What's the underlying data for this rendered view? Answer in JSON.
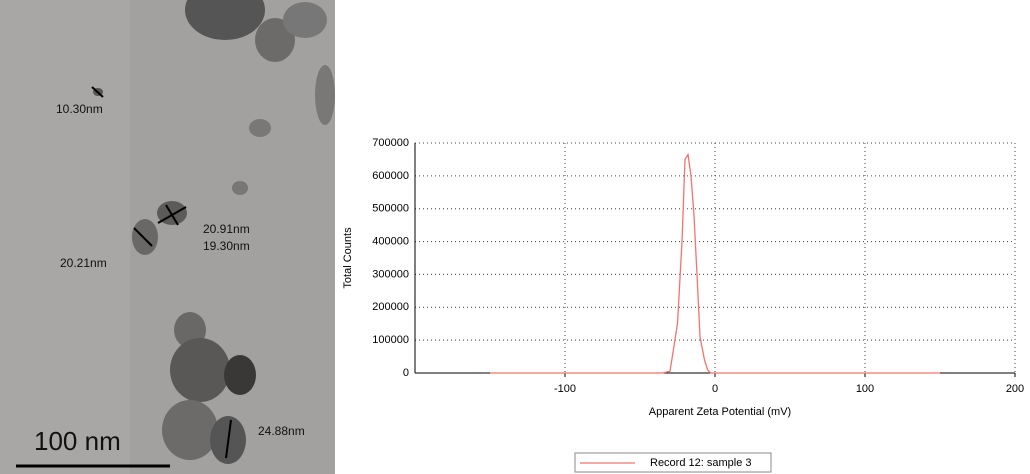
{
  "micrograph": {
    "labels": [
      "10.30nm",
      "20.21nm",
      "20.91nm",
      "19.30nm",
      "24.88nm"
    ],
    "scale_bar": "100 nm"
  },
  "chart_data": {
    "type": "line",
    "x_label": "Apparent Zeta Potential (mV)",
    "y_label": "Total Counts",
    "x": [
      -150,
      -35,
      -30,
      -25,
      -22,
      -20,
      -18,
      -16,
      -14,
      -12,
      -10,
      -7,
      -5,
      -3,
      0,
      150
    ],
    "series": [
      {
        "name": "Record 12: sample 3",
        "color": "#f4736b",
        "values": [
          0,
          0,
          5000,
          150000,
          400000,
          650000,
          665000,
          600000,
          480000,
          300000,
          110000,
          40000,
          10000,
          0,
          0,
          0
        ]
      }
    ],
    "xlim": [
      -200,
      200
    ],
    "xticks": [
      -100,
      0,
      100,
      200
    ],
    "ylim": [
      0,
      700000
    ],
    "yticks": [
      0,
      100000,
      200000,
      300000,
      400000,
      500000,
      600000,
      700000
    ],
    "grid": true,
    "legend": "bottom"
  }
}
